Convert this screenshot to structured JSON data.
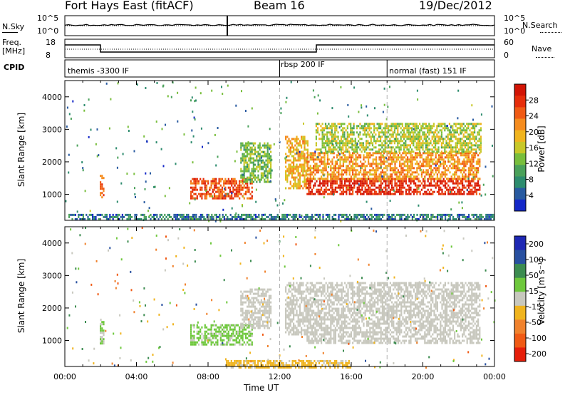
{
  "header": {
    "station": "Fort Hays East (fitACF)",
    "beam": "Beam 16",
    "date": "19/Dec/2012"
  },
  "strips": {
    "nsky_label": "N.Sky",
    "nsky_ticks": [
      "10^5",
      "10^0"
    ],
    "nsearch_label": "N.Search",
    "nsearch_ticks": [
      "10^5",
      "10^0"
    ],
    "freq_label_1": "Freq.",
    "freq_label_2": "[MHz]",
    "freq_ticks": [
      "18",
      "8"
    ],
    "nave_label": "Nave",
    "nave_ticks": [
      "60",
      "0"
    ],
    "cpid_label": "CPID",
    "cpid_segments": [
      "themis -3300 IF",
      "rbsp 200 IF",
      "normal (fast) 151 IF"
    ]
  },
  "colors": {
    "power": [
      "#1428c8",
      "#285aa0",
      "#2d8c6e",
      "#4aa15a",
      "#78be3c",
      "#c8c828",
      "#f0b41e",
      "#f58c1e",
      "#f05a14",
      "#e62d0a",
      "#d21405"
    ],
    "velocity": [
      "#1e28b4",
      "#2850a0",
      "#3c8c50",
      "#6ec83c",
      "#c8c8be",
      "#f0b41e",
      "#f0822d",
      "#f05a14",
      "#e61e0a"
    ]
  },
  "chart_data": [
    {
      "type": "heatmap",
      "name": "power",
      "ylabel": "Slant Range [km]",
      "yticks": [
        "1000",
        "2000",
        "3000",
        "4000"
      ],
      "ylim": [
        200,
        4500
      ],
      "colorbar_label": "Power [dB]",
      "colorbar_ticks": [
        "28",
        "24",
        "20",
        "16",
        "12",
        "8",
        "4"
      ],
      "colorbar_range": [
        0,
        30
      ],
      "regions": [
        {
          "t": [
            1.95,
            2.2
          ],
          "r": [
            900,
            1600
          ],
          "p": 22
        },
        {
          "t": [
            7.0,
            10.5
          ],
          "r": [
            900,
            1500
          ],
          "p": 24
        },
        {
          "t": [
            9.8,
            11.5
          ],
          "r": [
            1400,
            2600
          ],
          "p": 12
        },
        {
          "t": [
            12.3,
            13.6
          ],
          "r": [
            1200,
            2800
          ],
          "p": 18
        },
        {
          "t": [
            13.5,
            23.2
          ],
          "r": [
            1000,
            1500
          ],
          "p": 27
        },
        {
          "t": [
            13.5,
            23.2
          ],
          "r": [
            1500,
            2300
          ],
          "p": 20
        },
        {
          "t": [
            14.0,
            23.2
          ],
          "r": [
            2300,
            3200
          ],
          "p": 14
        },
        {
          "t": [
            0.2,
            24
          ],
          "r": [
            250,
            400
          ],
          "p": 6
        }
      ]
    },
    {
      "type": "heatmap",
      "name": "velocity",
      "xlabel": "Time UT",
      "xticks": [
        "00:00",
        "04:00",
        "08:00",
        "12:00",
        "16:00",
        "20:00",
        "00:00"
      ],
      "ylabel": "Slant Range [km]",
      "yticks": [
        "1000",
        "2000",
        "3000",
        "4000"
      ],
      "ylim": [
        200,
        4500
      ],
      "colorbar_label": "Velocity [m s⁻¹]",
      "colorbar_ticks": [
        "200",
        "100",
        "50",
        "15",
        "-15",
        "-50",
        "-100",
        "-200"
      ],
      "colorbar_range": [
        -250,
        250
      ],
      "regions": [
        {
          "t": [
            1.95,
            2.2
          ],
          "r": [
            900,
            1600
          ],
          "v": 35
        },
        {
          "t": [
            7.0,
            10.5
          ],
          "r": [
            900,
            1500
          ],
          "v": 40
        },
        {
          "t": [
            9.8,
            11.5
          ],
          "r": [
            1400,
            2600
          ],
          "v": 0
        },
        {
          "t": [
            12.3,
            13.6
          ],
          "r": [
            1200,
            2800
          ],
          "v": 0
        },
        {
          "t": [
            13.5,
            23.2
          ],
          "r": [
            900,
            2800
          ],
          "v": 0
        },
        {
          "t": [
            9.0,
            16.0
          ],
          "r": [
            200,
            400
          ],
          "v": -40
        }
      ]
    }
  ]
}
